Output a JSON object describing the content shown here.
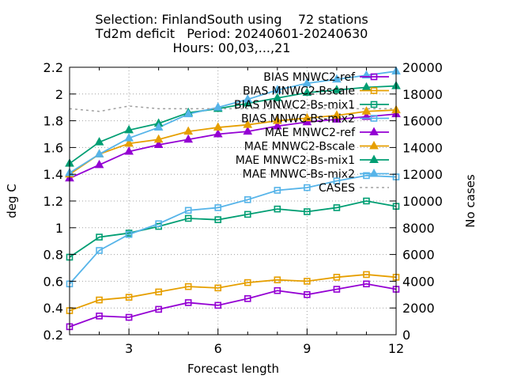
{
  "chart_data": {
    "type": "line",
    "title_lines": [
      "Selection: FinlandSouth using    72 stations",
      "Td2m deficit   Period: 20240601-20240630",
      "Hours: 00,03,...,21"
    ],
    "xlabel": "Forecast length",
    "ylabel": "deg C",
    "y2label": "No cases",
    "x": [
      1,
      2,
      3,
      4,
      5,
      6,
      7,
      8,
      9,
      10,
      11,
      12
    ],
    "xlim": [
      1,
      12
    ],
    "ylim": [
      0.2,
      2.2
    ],
    "y2lim": [
      0,
      20000
    ],
    "xticks": [
      "3",
      "6",
      "9",
      "12"
    ],
    "yticks": [
      "0.2",
      "0.4",
      "0.6",
      "0.8",
      "1",
      "1.2",
      "1.4",
      "1.6",
      "1.8",
      "2",
      "2.2"
    ],
    "y2ticks": [
      "0",
      "2000",
      "4000",
      "6000",
      "8000",
      "10000",
      "12000",
      "14000",
      "16000",
      "18000",
      "20000"
    ],
    "grid": true,
    "legend_position": "top-right",
    "series": [
      {
        "name": "BIAS MNWC2-ref",
        "color": "#9400d3",
        "marker": "open-square",
        "axis": "y",
        "values": [
          0.26,
          0.34,
          0.33,
          0.39,
          0.44,
          0.42,
          0.47,
          0.53,
          0.5,
          0.54,
          0.58,
          0.54
        ]
      },
      {
        "name": "BIAS MNWC2-Bscale",
        "color": "#e69f00",
        "marker": "open-square",
        "axis": "y",
        "values": [
          0.38,
          0.46,
          0.48,
          0.52,
          0.56,
          0.55,
          0.59,
          0.61,
          0.6,
          0.63,
          0.65,
          0.63
        ]
      },
      {
        "name": "BIAS MNWC2-Bs-mix1",
        "color": "#009e73",
        "marker": "open-square",
        "axis": "y",
        "values": [
          0.78,
          0.93,
          0.96,
          1.01,
          1.07,
          1.06,
          1.1,
          1.14,
          1.12,
          1.15,
          1.2,
          1.16
        ]
      },
      {
        "name": "BIAS MNWC-Bs-mix2",
        "color": "#56b4e9",
        "marker": "open-square",
        "axis": "y",
        "values": [
          0.58,
          0.83,
          0.95,
          1.03,
          1.13,
          1.15,
          1.21,
          1.28,
          1.3,
          1.35,
          1.39,
          1.38
        ]
      },
      {
        "name": "MAE MNWC2-ref",
        "color": "#9400d3",
        "marker": "filled-triangle",
        "axis": "y",
        "values": [
          1.37,
          1.47,
          1.57,
          1.62,
          1.66,
          1.7,
          1.72,
          1.76,
          1.79,
          1.81,
          1.83,
          1.85
        ]
      },
      {
        "name": "MAE MNWC2-Bscale",
        "color": "#e69f00",
        "marker": "filled-triangle",
        "axis": "y",
        "values": [
          1.4,
          1.55,
          1.63,
          1.66,
          1.72,
          1.75,
          1.77,
          1.8,
          1.82,
          1.84,
          1.87,
          1.88
        ]
      },
      {
        "name": "MAE MNWC2-Bs-mix1",
        "color": "#009e73",
        "marker": "filled-triangle",
        "axis": "y",
        "values": [
          1.48,
          1.64,
          1.73,
          1.78,
          1.86,
          1.89,
          1.93,
          1.97,
          2.01,
          2.03,
          2.05,
          2.06
        ]
      },
      {
        "name": "MAE MNWC-Bs-mix2",
        "color": "#56b4e9",
        "marker": "filled-triangle",
        "axis": "y",
        "values": [
          1.41,
          1.55,
          1.67,
          1.75,
          1.85,
          1.9,
          1.96,
          2.03,
          2.08,
          2.11,
          2.14,
          2.17
        ]
      },
      {
        "name": "CASES",
        "color": "#a0a0a0",
        "marker": "none",
        "dash": true,
        "axis": "y2",
        "values": [
          16900,
          16700,
          17100,
          16900,
          16900,
          16900,
          16900,
          16900,
          16900,
          16900,
          16900,
          16900
        ]
      }
    ]
  }
}
